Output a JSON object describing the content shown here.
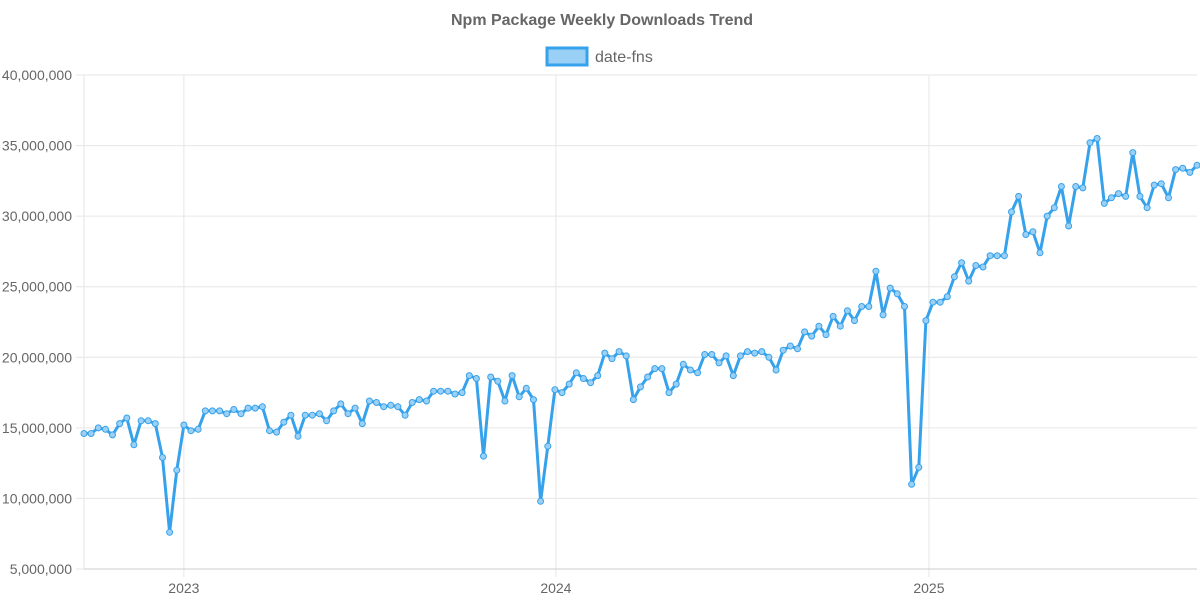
{
  "chart_data": {
    "type": "line",
    "title": "Npm Package Weekly Downloads Trend",
    "xlabel": "",
    "ylabel": "",
    "ylim": [
      5000000,
      40000000
    ],
    "y_ticks": [
      5000000,
      10000000,
      15000000,
      20000000,
      25000000,
      30000000,
      35000000,
      40000000
    ],
    "y_tick_labels": [
      "5,000,000",
      "10,000,000",
      "15,000,000",
      "20,000,000",
      "25,000,000",
      "30,000,000",
      "35,000,000",
      "40,000,000"
    ],
    "x_ticks": [
      "2023-01-01",
      "2024-01-01",
      "2025-01-01"
    ],
    "x_tick_labels": [
      "2023",
      "2024",
      "2025"
    ],
    "x_range": [
      "2022-09-25",
      "2025-09-21"
    ],
    "legend_position": "top-center",
    "grid": true,
    "colors": {
      "line": "#36a2eb",
      "fill": "#9ad0f5"
    },
    "series": [
      {
        "name": "date-fns",
        "x": [
          "2022-09-25",
          "2022-10-02",
          "2022-10-09",
          "2022-10-16",
          "2022-10-23",
          "2022-10-30",
          "2022-11-06",
          "2022-11-13",
          "2022-11-20",
          "2022-11-27",
          "2022-12-04",
          "2022-12-11",
          "2022-12-18",
          "2022-12-25",
          "2023-01-01",
          "2023-01-08",
          "2023-01-15",
          "2023-01-22",
          "2023-01-29",
          "2023-02-05",
          "2023-02-12",
          "2023-02-19",
          "2023-02-26",
          "2023-03-05",
          "2023-03-12",
          "2023-03-19",
          "2023-03-26",
          "2023-04-02",
          "2023-04-09",
          "2023-04-16",
          "2023-04-23",
          "2023-04-30",
          "2023-05-07",
          "2023-05-14",
          "2023-05-21",
          "2023-05-28",
          "2023-06-04",
          "2023-06-11",
          "2023-06-18",
          "2023-06-25",
          "2023-07-02",
          "2023-07-09",
          "2023-07-16",
          "2023-07-23",
          "2023-07-30",
          "2023-08-06",
          "2023-08-13",
          "2023-08-20",
          "2023-08-27",
          "2023-09-03",
          "2023-09-10",
          "2023-09-17",
          "2023-09-24",
          "2023-10-01",
          "2023-10-08",
          "2023-10-15",
          "2023-10-22",
          "2023-10-29",
          "2023-11-05",
          "2023-11-12",
          "2023-11-19",
          "2023-11-26",
          "2023-12-03",
          "2023-12-10",
          "2023-12-17",
          "2023-12-24",
          "2023-12-31",
          "2024-01-07",
          "2024-01-14",
          "2024-01-21",
          "2024-01-28",
          "2024-02-04",
          "2024-02-11",
          "2024-02-18",
          "2024-02-25",
          "2024-03-03",
          "2024-03-10",
          "2024-03-17",
          "2024-03-24",
          "2024-03-31",
          "2024-04-07",
          "2024-04-14",
          "2024-04-21",
          "2024-04-28",
          "2024-05-05",
          "2024-05-12",
          "2024-05-19",
          "2024-05-26",
          "2024-06-02",
          "2024-06-09",
          "2024-06-16",
          "2024-06-23",
          "2024-06-30",
          "2024-07-07",
          "2024-07-14",
          "2024-07-21",
          "2024-07-28",
          "2024-08-04",
          "2024-08-11",
          "2024-08-18",
          "2024-08-25",
          "2024-09-01",
          "2024-09-08",
          "2024-09-15",
          "2024-09-22",
          "2024-09-29",
          "2024-10-06",
          "2024-10-13",
          "2024-10-20",
          "2024-10-27",
          "2024-11-03",
          "2024-11-10",
          "2024-11-17",
          "2024-11-24",
          "2024-12-01",
          "2024-12-08",
          "2024-12-15",
          "2024-12-22",
          "2024-12-29",
          "2025-01-05",
          "2025-01-12",
          "2025-01-19",
          "2025-01-26",
          "2025-02-02",
          "2025-02-09",
          "2025-02-16",
          "2025-02-23",
          "2025-03-02",
          "2025-03-09",
          "2025-03-16",
          "2025-03-23",
          "2025-03-30",
          "2025-04-06",
          "2025-04-13",
          "2025-04-20",
          "2025-04-27",
          "2025-05-04",
          "2025-05-11",
          "2025-05-18",
          "2025-05-25",
          "2025-06-01",
          "2025-06-08",
          "2025-06-15",
          "2025-06-22",
          "2025-06-29",
          "2025-07-06",
          "2025-07-13",
          "2025-07-20",
          "2025-07-27",
          "2025-08-03",
          "2025-08-10",
          "2025-08-17",
          "2025-08-24",
          "2025-08-31",
          "2025-09-07",
          "2025-09-14",
          "2025-09-21"
        ],
        "values": [
          14600000,
          14600000,
          15000000,
          14900000,
          14500000,
          15300000,
          15700000,
          13800000,
          15500000,
          15500000,
          15300000,
          12900000,
          7600000,
          12000000,
          15200000,
          14800000,
          14900000,
          16200000,
          16200000,
          16200000,
          16000000,
          16300000,
          16000000,
          16400000,
          16400000,
          16500000,
          14800000,
          14700000,
          15400000,
          15900000,
          14400000,
          15900000,
          15900000,
          16000000,
          15500000,
          16200000,
          16700000,
          16000000,
          16400000,
          15300000,
          16900000,
          16800000,
          16500000,
          16600000,
          16500000,
          15900000,
          16800000,
          17000000,
          16900000,
          17600000,
          17600000,
          17600000,
          17400000,
          17500000,
          18700000,
          18500000,
          13000000,
          18600000,
          18300000,
          16900000,
          18700000,
          17200000,
          17800000,
          17000000,
          9800000,
          13700000,
          17700000,
          17500000,
          18100000,
          18900000,
          18500000,
          18200000,
          18700000,
          20300000,
          19900000,
          20400000,
          20100000,
          17000000,
          17900000,
          18600000,
          19200000,
          19200000,
          17500000,
          18100000,
          19500000,
          19100000,
          18900000,
          20200000,
          20200000,
          19600000,
          20100000,
          18700000,
          20100000,
          20400000,
          20300000,
          20400000,
          20000000,
          19100000,
          20500000,
          20800000,
          20600000,
          21800000,
          21500000,
          22200000,
          21600000,
          22900000,
          22200000,
          23300000,
          22600000,
          23600000,
          23600000,
          26100000,
          23000000,
          24900000,
          24500000,
          23600000,
          11000000,
          12200000,
          22600000,
          23900000,
          23900000,
          24300000,
          25700000,
          26700000,
          25400000,
          26500000,
          26400000,
          27200000,
          27200000,
          27200000,
          30300000,
          31400000,
          28700000,
          28900000,
          27400000,
          30000000,
          30600000,
          32100000,
          29300000,
          32100000,
          32000000,
          35200000,
          35500000,
          30900000,
          31300000,
          31600000,
          31400000,
          34500000,
          31400000,
          30600000,
          32200000,
          32300000,
          31300000,
          33300000,
          33400000,
          33100000,
          33600000
        ]
      }
    ]
  }
}
